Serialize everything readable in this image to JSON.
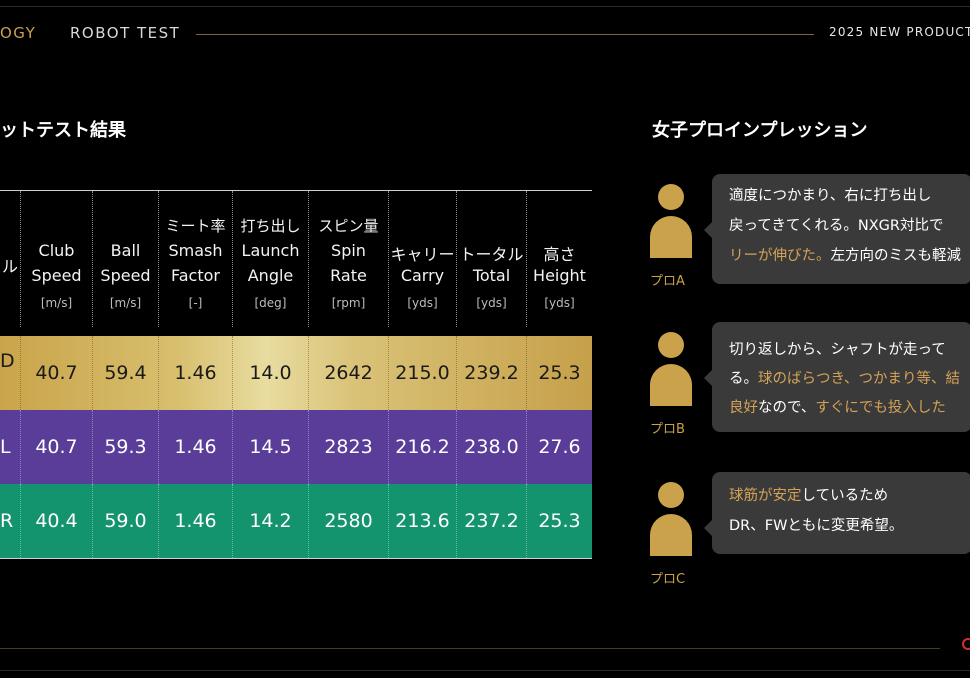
{
  "header": {
    "tech_label": "OGY",
    "section_label": "ROBOT TEST",
    "product_label": "2025 NEW PRODUCT"
  },
  "left_title": "ットテスト結果",
  "right_title": "女子プロインプレッション",
  "table": {
    "headers": [
      {
        "jp": "",
        "en1": "",
        "en2": "ル",
        "unit": ""
      },
      {
        "jp": "",
        "en1": "Club",
        "en2": "Speed",
        "unit": "[m/s]"
      },
      {
        "jp": "",
        "en1": "Ball",
        "en2": "Speed",
        "unit": "[m/s]"
      },
      {
        "jp": "ミート率",
        "en1": "Smash",
        "en2": "Factor",
        "unit": "[-]"
      },
      {
        "jp": "打ち出し",
        "en1": "Launch",
        "en2": "Angle",
        "unit": "[deg]"
      },
      {
        "jp": "スピン量",
        "en1": "Spin",
        "en2": "Rate",
        "unit": "[rpm]"
      },
      {
        "jp": "キャリー",
        "en1": "Carry",
        "en2": "",
        "unit": "[yds]"
      },
      {
        "jp": "トータル",
        "en1": "Total",
        "en2": "",
        "unit": "[yds]"
      },
      {
        "jp": "高さ",
        "en1": "Height",
        "en2": "",
        "unit": "[yds]"
      }
    ],
    "rows": [
      {
        "label1": "",
        "label2": "D",
        "values": [
          "40.7",
          "59.4",
          "1.46",
          "14.0",
          "2642",
          "215.0",
          "239.2",
          "25.3"
        ]
      },
      {
        "label1": "L",
        "label2": "",
        "values": [
          "40.7",
          "59.3",
          "1.46",
          "14.5",
          "2823",
          "216.2",
          "238.0",
          "27.6"
        ]
      },
      {
        "label1": "R",
        "label2": "",
        "values": [
          "40.4",
          "59.0",
          "1.46",
          "14.2",
          "2580",
          "213.6",
          "237.2",
          "25.3"
        ]
      }
    ]
  },
  "pros": [
    {
      "name": "プロA",
      "lines": [
        [
          {
            "t": "適度につかまり、右に打ち出し",
            "g": false
          }
        ],
        [
          {
            "t": "戻ってきてくれる。NXGR対比で",
            "g": false
          }
        ],
        [
          {
            "t": "リーが伸びた。",
            "g": true
          },
          {
            "t": "左方向のミスも軽減",
            "g": false
          }
        ]
      ]
    },
    {
      "name": "プロB",
      "lines": [
        [
          {
            "t": "切り返しから、シャフトが走って",
            "g": false
          }
        ],
        [
          {
            "t": "る。",
            "g": false
          },
          {
            "t": "球のばらつき、つかまり等、結",
            "g": true
          }
        ],
        [
          {
            "t": "良好",
            "g": true
          },
          {
            "t": "なので、",
            "g": false
          },
          {
            "t": "すぐにでも投入した",
            "g": true
          }
        ]
      ]
    },
    {
      "name": "プロC",
      "lines": [
        [
          {
            "t": "球筋が安定",
            "g": true
          },
          {
            "t": "しているため",
            "g": false
          }
        ],
        [
          {
            "t": "DR、FWともに変更希望。",
            "g": false
          }
        ]
      ]
    }
  ]
}
